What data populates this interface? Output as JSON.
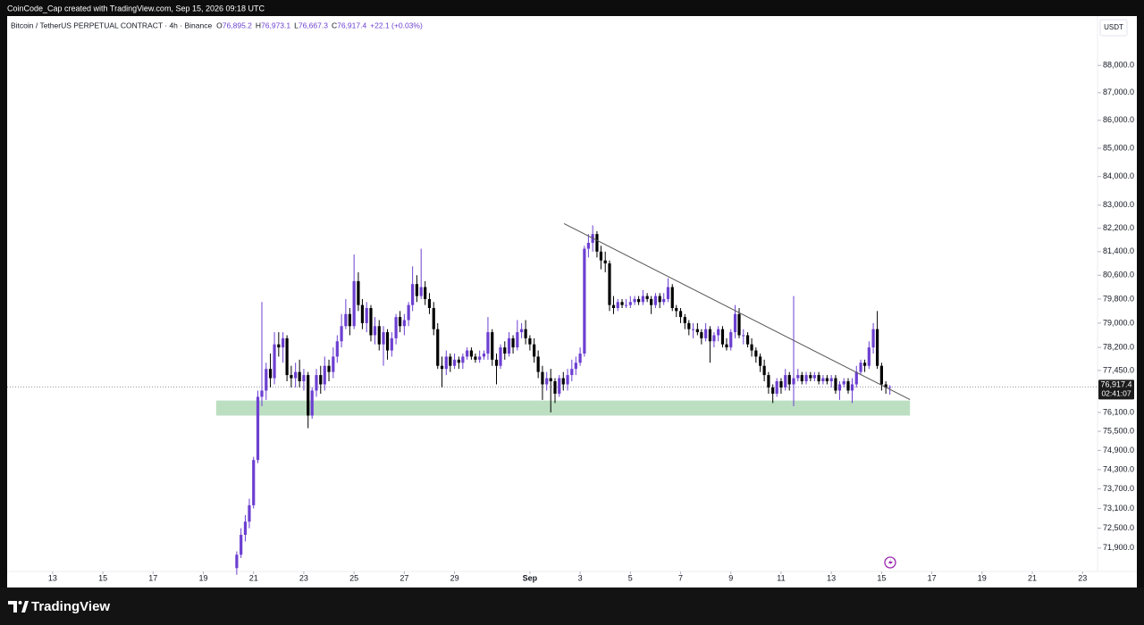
{
  "chart_data": {
    "type": "candlestick",
    "credit": "CoinCode_Cap created with TradingView.com, Sep 15, 2026 09:18 UTC",
    "symbol": "Bitcoin / TetherUS PERPETUAL CONTRACT · 4h · Binance",
    "ohlc_legend": [
      {
        "key": "O",
        "label": "76,895.2"
      },
      {
        "key": "H",
        "label": "76,973.1"
      },
      {
        "key": "L",
        "label": "76,667.3"
      },
      {
        "key": "C",
        "label": "76,917.4"
      }
    ],
    "change": "+22.1 (+0.03%)",
    "currency": "USDT",
    "last_price_label": "76,917.4",
    "countdown": "02:41:07",
    "brand": "TradingView",
    "log_scale": true,
    "up_color": "#6c3fd1",
    "down_color": "#000000",
    "xlim": [
      11.19,
      54.49
    ],
    "ylim": [
      71200,
      89100
    ],
    "xticks": [
      13,
      15,
      17,
      19,
      21,
      23,
      25,
      27,
      29,
      {
        "value": 32,
        "label": "Sep"
      },
      {
        "value": 34,
        "label": "3"
      },
      {
        "value": 36,
        "label": "5"
      },
      {
        "value": 38,
        "label": "7"
      },
      {
        "value": 40,
        "label": "9"
      },
      {
        "value": 42,
        "label": "11"
      },
      {
        "value": 44,
        "label": "13"
      },
      {
        "value": 46,
        "label": "15"
      },
      {
        "value": 48,
        "label": "17"
      },
      {
        "value": 50,
        "label": "19"
      },
      {
        "value": 52,
        "label": "21"
      },
      {
        "value": 54,
        "label": "23"
      }
    ],
    "yticks": [
      {
        "value": 88000,
        "label": "88,000.0"
      },
      {
        "value": 87000,
        "label": "87,000.0"
      },
      {
        "value": 86000,
        "label": "86,000.0"
      },
      {
        "value": 85000,
        "label": "85,000.0"
      },
      {
        "value": 84000,
        "label": "84,000.0"
      },
      {
        "value": 83000,
        "label": "83,000.0"
      },
      {
        "value": 82200,
        "label": "82,200.0"
      },
      {
        "value": 81400,
        "label": "81,400.0"
      },
      {
        "value": 80600,
        "label": "80,600.0"
      },
      {
        "value": 79800,
        "label": "79,800.0"
      },
      {
        "value": 79000,
        "label": "79,000.0"
      },
      {
        "value": 78200,
        "label": "78,200.0"
      },
      {
        "value": 77450,
        "label": "77,450.0"
      },
      {
        "value": 76100,
        "label": "76,100.0"
      },
      {
        "value": 75500,
        "label": "75,500.0"
      },
      {
        "value": 74900,
        "label": "74,900.0"
      },
      {
        "value": 74300,
        "label": "74,300.0"
      },
      {
        "value": 73700,
        "label": "73,700.0"
      },
      {
        "value": 73100,
        "label": "73,100.0"
      },
      {
        "value": 72500,
        "label": "72,500.0"
      },
      {
        "value": 71900,
        "label": "71,900.0"
      }
    ],
    "zone": {
      "x": [
        19.51,
        47.13
      ],
      "y": [
        76000,
        76480
      ],
      "color": "#b5dbbb"
    },
    "trendline": {
      "from": [
        33.36,
        82360
      ],
      "to": [
        47.13,
        76510
      ],
      "color": "#555555"
    },
    "candles": [
      [
        20.33,
        71300,
        71800,
        71100,
        71700
      ],
      [
        20.5,
        71700,
        72500,
        71600,
        72300
      ],
      [
        20.67,
        72300,
        72900,
        72100,
        72700
      ],
      [
        20.83,
        72700,
        73400,
        72500,
        73200
      ],
      [
        21,
        73200,
        74700,
        73100,
        74600
      ],
      [
        21.17,
        74600,
        76800,
        74500,
        76600
      ],
      [
        21.33,
        76600,
        79700,
        76300,
        76800
      ],
      [
        21.5,
        76800,
        77700,
        76500,
        77500
      ],
      [
        21.67,
        77500,
        78000,
        76900,
        77200
      ],
      [
        21.83,
        77200,
        78700,
        77000,
        78300
      ],
      [
        22,
        78300,
        78700,
        77900,
        78200
      ],
      [
        22.17,
        78200,
        78700,
        77700,
        78500
      ],
      [
        22.33,
        78500,
        78600,
        77100,
        77300
      ],
      [
        22.5,
        77300,
        77600,
        76900,
        77200
      ],
      [
        22.67,
        77200,
        77700,
        76900,
        77400
      ],
      [
        22.83,
        77400,
        77800,
        76900,
        77100
      ],
      [
        23,
        77100,
        77500,
        76800,
        77300
      ],
      [
        23.17,
        77300,
        77400,
        75600,
        76000
      ],
      [
        23.33,
        76000,
        76900,
        75900,
        76800
      ],
      [
        23.5,
        76800,
        77500,
        76600,
        77300
      ],
      [
        23.67,
        77300,
        77600,
        76700,
        77000
      ],
      [
        23.83,
        77000,
        77900,
        76800,
        77600
      ],
      [
        24,
        77600,
        77800,
        77100,
        77400
      ],
      [
        24.17,
        77400,
        78200,
        77200,
        77900
      ],
      [
        24.33,
        77900,
        78600,
        77700,
        78400
      ],
      [
        24.5,
        78400,
        79300,
        78200,
        78900
      ],
      [
        24.67,
        78900,
        79800,
        78800,
        79300
      ],
      [
        24.83,
        79300,
        79500,
        78600,
        78900
      ],
      [
        25,
        78900,
        81300,
        78800,
        80400
      ],
      [
        25.17,
        80400,
        80700,
        79400,
        79600
      ],
      [
        25.33,
        79600,
        79800,
        78800,
        79000
      ],
      [
        25.5,
        79000,
        79700,
        78700,
        79500
      ],
      [
        25.67,
        79500,
        79600,
        78400,
        78600
      ],
      [
        25.83,
        78600,
        79200,
        78300,
        78900
      ],
      [
        26,
        78900,
        79100,
        78100,
        78300
      ],
      [
        26.17,
        78300,
        78900,
        77600,
        78700
      ],
      [
        26.33,
        78700,
        78800,
        77800,
        78100
      ],
      [
        26.5,
        78100,
        78700,
        77900,
        78500
      ],
      [
        26.67,
        78500,
        79300,
        78300,
        79200
      ],
      [
        26.83,
        79200,
        79400,
        78700,
        78900
      ],
      [
        27,
        78900,
        79300,
        78600,
        79100
      ],
      [
        27.17,
        79100,
        79700,
        78900,
        79600
      ],
      [
        27.33,
        79600,
        80900,
        79400,
        80300
      ],
      [
        27.5,
        80300,
        80600,
        79700,
        79900
      ],
      [
        27.67,
        79900,
        81500,
        79800,
        80200
      ],
      [
        27.83,
        80200,
        80400,
        79600,
        79800
      ],
      [
        28,
        79800,
        80000,
        79300,
        79500
      ],
      [
        28.17,
        79500,
        79700,
        78600,
        78800
      ],
      [
        28.33,
        78800,
        79000,
        77500,
        77600
      ],
      [
        28.5,
        77600,
        77900,
        76900,
        77500
      ],
      [
        28.67,
        77500,
        78100,
        77300,
        77900
      ],
      [
        28.83,
        77900,
        78000,
        77400,
        77600
      ],
      [
        29,
        77600,
        78000,
        77500,
        77800
      ],
      [
        29.17,
        77800,
        77900,
        77500,
        77700
      ],
      [
        29.33,
        77700,
        78000,
        77500,
        77900
      ],
      [
        29.5,
        77900,
        78200,
        77800,
        78100
      ],
      [
        29.67,
        78100,
        78200,
        77800,
        77900
      ],
      [
        29.83,
        77900,
        78000,
        77700,
        77800
      ],
      [
        30,
        77800,
        78100,
        77700,
        77900
      ],
      [
        30.17,
        77900,
        78100,
        77800,
        78000
      ],
      [
        30.33,
        78000,
        79200,
        77800,
        78700
      ],
      [
        30.5,
        78700,
        78800,
        77600,
        77800
      ],
      [
        30.67,
        77800,
        78000,
        77000,
        77600
      ],
      [
        30.83,
        77600,
        78300,
        77500,
        78200
      ],
      [
        31,
        78200,
        78400,
        77800,
        78000
      ],
      [
        31.17,
        78000,
        78700,
        77900,
        78500
      ],
      [
        31.33,
        78500,
        78600,
        78000,
        78200
      ],
      [
        31.5,
        78200,
        79100,
        78100,
        78700
      ],
      [
        31.67,
        78700,
        79000,
        78500,
        78800
      ],
      [
        31.83,
        78800,
        79100,
        78300,
        78500
      ],
      [
        32,
        78500,
        78600,
        78100,
        78300
      ],
      [
        32.17,
        78300,
        78500,
        77700,
        77900
      ],
      [
        32.33,
        77900,
        78100,
        77200,
        77400
      ],
      [
        32.5,
        77400,
        77600,
        76500,
        77000
      ],
      [
        32.67,
        77000,
        77400,
        76800,
        77200
      ],
      [
        32.83,
        77200,
        77500,
        76100,
        77100
      ],
      [
        33,
        77100,
        77200,
        76400,
        76700
      ],
      [
        33.17,
        76700,
        77300,
        76600,
        77200
      ],
      [
        33.33,
        77200,
        77400,
        76800,
        77000
      ],
      [
        33.5,
        77000,
        77500,
        76800,
        77300
      ],
      [
        33.67,
        77300,
        77800,
        77100,
        77500
      ],
      [
        33.83,
        77500,
        77900,
        77300,
        77700
      ],
      [
        34,
        77700,
        78200,
        77600,
        78000
      ],
      [
        34.17,
        78000,
        81600,
        77900,
        81500
      ],
      [
        34.33,
        81500,
        82000,
        81200,
        81700
      ],
      [
        34.5,
        81700,
        82300,
        81400,
        82000
      ],
      [
        34.67,
        82000,
        82100,
        81200,
        81400
      ],
      [
        34.83,
        81400,
        81600,
        80800,
        81100
      ],
      [
        35,
        81100,
        81400,
        80700,
        81000
      ],
      [
        35.17,
        81000,
        81100,
        79400,
        79600
      ],
      [
        35.33,
        79600,
        79900,
        79300,
        79500
      ],
      [
        35.5,
        79500,
        79800,
        79400,
        79700
      ],
      [
        35.67,
        79700,
        79800,
        79500,
        79600
      ],
      [
        35.83,
        79600,
        79800,
        79500,
        79600
      ],
      [
        36,
        79600,
        79900,
        79500,
        79700
      ],
      [
        36.17,
        79700,
        79900,
        79600,
        79800
      ],
      [
        36.33,
        79800,
        79900,
        79600,
        79700
      ],
      [
        36.5,
        79700,
        80100,
        79600,
        79900
      ],
      [
        36.67,
        79900,
        80000,
        79700,
        79800
      ],
      [
        36.83,
        79800,
        79900,
        79300,
        79600
      ],
      [
        37,
        79600,
        80000,
        79500,
        79900
      ],
      [
        37.17,
        79900,
        80000,
        79500,
        79700
      ],
      [
        37.33,
        79700,
        80000,
        79600,
        79800
      ],
      [
        37.5,
        79800,
        80500,
        79700,
        80200
      ],
      [
        37.67,
        80200,
        80300,
        79400,
        79500
      ],
      [
        37.83,
        79500,
        79600,
        79200,
        79400
      ],
      [
        38,
        79400,
        79500,
        79000,
        79200
      ],
      [
        38.17,
        79200,
        79300,
        78800,
        79000
      ],
      [
        38.33,
        79000,
        79100,
        78600,
        78800
      ],
      [
        38.5,
        78800,
        79000,
        78500,
        78800
      ],
      [
        38.67,
        78800,
        79000,
        78600,
        78700
      ],
      [
        38.83,
        78700,
        78800,
        78300,
        78500
      ],
      [
        39,
        78500,
        79000,
        78400,
        78800
      ],
      [
        39.17,
        78800,
        78900,
        77700,
        78400
      ],
      [
        39.33,
        78400,
        78700,
        78200,
        78600
      ],
      [
        39.5,
        78600,
        78900,
        78400,
        78800
      ],
      [
        39.67,
        78800,
        78900,
        78200,
        78300
      ],
      [
        39.83,
        78300,
        78500,
        78100,
        78200
      ],
      [
        40,
        78200,
        78800,
        78100,
        78700
      ],
      [
        40.17,
        78700,
        79600,
        78500,
        79300
      ],
      [
        40.33,
        79300,
        79500,
        78500,
        78600
      ],
      [
        40.5,
        78600,
        78800,
        78300,
        78600
      ],
      [
        40.67,
        78600,
        78700,
        78200,
        78300
      ],
      [
        40.83,
        78300,
        78500,
        77900,
        78100
      ],
      [
        41,
        78100,
        78200,
        77700,
        77900
      ],
      [
        41.17,
        77900,
        78000,
        77400,
        77600
      ],
      [
        41.33,
        77600,
        77800,
        77100,
        77300
      ],
      [
        41.5,
        77300,
        77400,
        76700,
        76900
      ],
      [
        41.67,
        76900,
        77000,
        76400,
        76700
      ],
      [
        41.83,
        76700,
        77200,
        76600,
        77100
      ],
      [
        42,
        77100,
        77200,
        76700,
        76900
      ],
      [
        42.17,
        76900,
        77500,
        76800,
        77300
      ],
      [
        42.33,
        77300,
        77400,
        76800,
        77000
      ],
      [
        42.5,
        77000,
        79900,
        76300,
        77200
      ],
      [
        42.67,
        77200,
        77500,
        77100,
        77300
      ],
      [
        42.83,
        77300,
        77400,
        77000,
        77100
      ],
      [
        43,
        77100,
        77400,
        77000,
        77300
      ],
      [
        43.17,
        77300,
        77400,
        77100,
        77200
      ],
      [
        43.33,
        77200,
        77400,
        77100,
        77300
      ],
      [
        43.5,
        77300,
        77400,
        77000,
        77100
      ],
      [
        43.67,
        77100,
        77300,
        77000,
        77200
      ],
      [
        43.83,
        77200,
        77300,
        77000,
        77100
      ],
      [
        44,
        77100,
        77300,
        76900,
        77200
      ],
      [
        44.17,
        77200,
        77300,
        76700,
        76800
      ],
      [
        44.33,
        76800,
        77100,
        76500,
        77000
      ],
      [
        44.5,
        77000,
        77200,
        76900,
        77100
      ],
      [
        44.67,
        77100,
        77200,
        76700,
        76800
      ],
      [
        44.83,
        76800,
        77200,
        76400,
        77000
      ],
      [
        45,
        77000,
        77600,
        76900,
        77400
      ],
      [
        45.17,
        77400,
        77800,
        77300,
        77700
      ],
      [
        45.33,
        77700,
        77800,
        77400,
        77600
      ],
      [
        45.5,
        77600,
        78400,
        77500,
        78200
      ],
      [
        45.67,
        78200,
        79000,
        78000,
        78800
      ],
      [
        45.83,
        78800,
        79400,
        77500,
        77600
      ],
      [
        46,
        77600,
        77700,
        76800,
        77000
      ],
      [
        46.17,
        77000,
        77100,
        76700,
        76895.2
      ],
      [
        46.33,
        76895.2,
        76973.1,
        76667.3,
        76917.4
      ]
    ]
  }
}
